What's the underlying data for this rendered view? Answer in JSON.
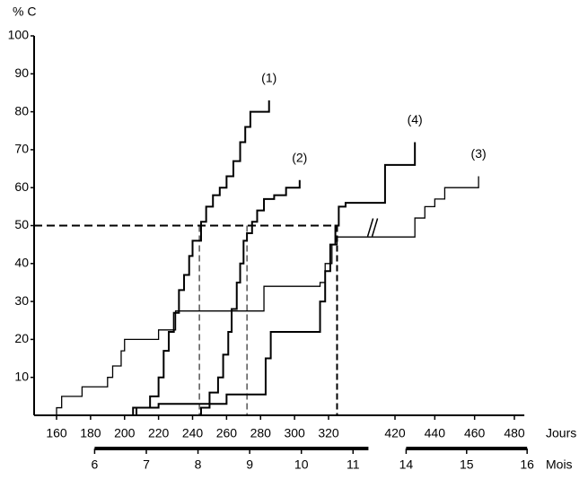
{
  "chart_data": {
    "type": "step",
    "y_label": "% C",
    "x_label": "Jours",
    "x2_label": "Mois",
    "ylim": [
      0,
      100
    ],
    "yticks": [
      10,
      20,
      30,
      40,
      50,
      60,
      70,
      80,
      90,
      100
    ],
    "xlim": [
      150,
      485
    ],
    "x_break": [
      335,
      405
    ],
    "xticks": [
      160,
      180,
      200,
      220,
      240,
      260,
      280,
      300,
      320,
      420,
      440,
      460,
      480
    ],
    "x2ticks": [
      6,
      7,
      8,
      9,
      10,
      11,
      14,
      15,
      16
    ],
    "color": "#000000",
    "median_level": 50,
    "medians": [
      244,
      272,
      325
    ],
    "series": [
      {
        "name": "(1)",
        "x": [
          205,
          215,
          220,
          223,
          226,
          229,
          232,
          235,
          238,
          240,
          245,
          248,
          252,
          256,
          260,
          264,
          268,
          271,
          274,
          285
        ],
        "values": [
          2,
          5,
          10,
          17,
          22,
          27,
          33,
          37,
          42,
          46,
          51,
          55,
          58,
          60,
          63,
          67,
          72,
          76,
          80,
          83
        ]
      },
      {
        "name": "(2)",
        "x": [
          245,
          250,
          255,
          258,
          261,
          263,
          266,
          268,
          270,
          272,
          275,
          278,
          282,
          288,
          295,
          303
        ],
        "values": [
          2,
          6,
          10,
          16,
          22,
          28,
          35,
          40,
          46,
          48,
          51,
          54,
          57,
          58,
          60,
          62
        ]
      },
      {
        "name": "(3)",
        "x": [
          160,
          163,
          175,
          190,
          193,
          198,
          200,
          220,
          230,
          282,
          315,
          318,
          322,
          325,
          430,
          435,
          440,
          445,
          462
        ],
        "values": [
          2,
          5,
          7.5,
          10,
          13,
          17,
          20,
          22.5,
          27.5,
          34,
          35,
          40,
          45,
          47,
          52,
          55,
          57,
          60,
          63
        ]
      },
      {
        "name": "(4)",
        "x": [
          207,
          220,
          260,
          283,
          286,
          315,
          318,
          321,
          324,
          326,
          330,
          415,
          430
        ],
        "values": [
          2,
          3,
          5.5,
          15,
          22,
          30,
          38,
          45,
          50,
          55,
          56,
          66,
          72
        ]
      }
    ]
  }
}
